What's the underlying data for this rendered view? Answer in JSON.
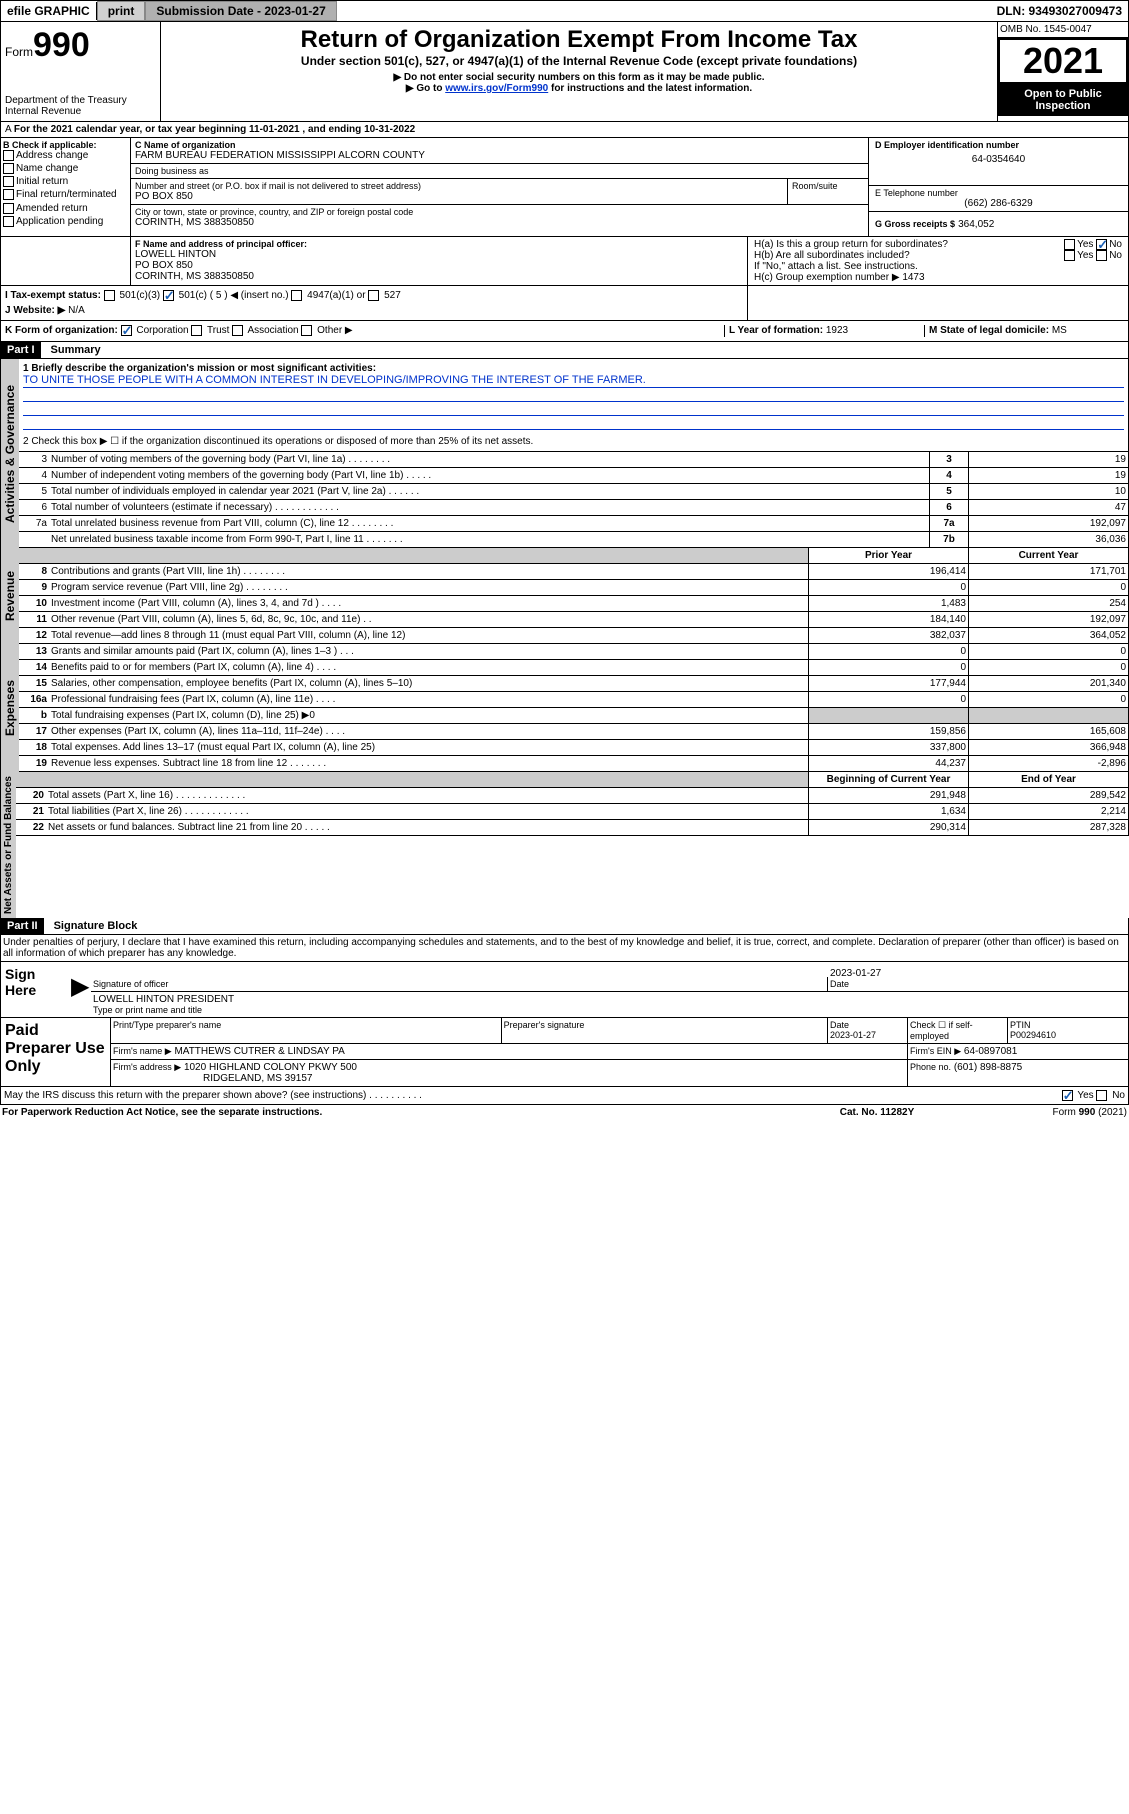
{
  "topbar": {
    "efile": "efile GRAPHIC",
    "print": "print",
    "submission_label": "Submission Date - 2023-01-27",
    "dln": "DLN: 93493027009473"
  },
  "header": {
    "form_prefix": "Form",
    "form_number": "990",
    "title": "Return of Organization Exempt From Income Tax",
    "subtitle": "Under section 501(c), 527, or 4947(a)(1) of the Internal Revenue Code (except private foundations)",
    "note1": "Do not enter social security numbers on this form as it may be made public.",
    "note2_pre": "Go to ",
    "note2_link": "www.irs.gov/Form990",
    "note2_post": " for instructions and the latest information.",
    "dept": "Department of the Treasury",
    "irs": "Internal Revenue",
    "omb": "OMB No. 1545-0047",
    "year": "2021",
    "open": "Open to Public Inspection"
  },
  "lineA": {
    "text_pre": "For the 2021 calendar year, or tax year beginning ",
    "begin": "11-01-2021",
    "mid": " , and ending ",
    "end": "10-31-2022"
  },
  "boxB": {
    "label": "B Check if applicable:",
    "items": [
      "Address change",
      "Name change",
      "Initial return",
      "Final return/terminated",
      "Amended return",
      "Application pending"
    ]
  },
  "boxC": {
    "label": "C Name of organization",
    "name": "FARM BUREAU FEDERATION MISSISSIPPI ALCORN COUNTY",
    "dba_label": "Doing business as",
    "dba": "",
    "street_label": "Number and street (or P.O. box if mail is not delivered to street address)",
    "room_label": "Room/suite",
    "street": "PO BOX 850",
    "city_label": "City or town, state or province, country, and ZIP or foreign postal code",
    "city": "CORINTH, MS  388350850"
  },
  "boxD": {
    "label": "D Employer identification number",
    "value": "64-0354640"
  },
  "boxE": {
    "label": "E Telephone number",
    "value": "(662) 286-6329"
  },
  "boxG": {
    "label": "G Gross receipts $",
    "value": "364,052"
  },
  "boxF": {
    "label": "F Name and address of principal officer:",
    "name": "LOWELL HINTON",
    "street": "PO BOX 850",
    "city": "CORINTH, MS  388350850"
  },
  "boxH": {
    "ha_label": "H(a)  Is this a group return for subordinates?",
    "ha_yes": "Yes",
    "ha_no": "No",
    "hb_label": "H(b)  Are all subordinates included?",
    "hb_note": "If \"No,\" attach a list. See instructions.",
    "hc_label": "H(c)  Group exemption number ▶",
    "hc_value": "1473"
  },
  "boxI": {
    "label": "I     Tax-exempt status:",
    "opt1": "501(c)(3)",
    "opt2": "501(c) ( 5 ) ◀ (insert no.)",
    "opt3": "4947(a)(1) or",
    "opt4": "527"
  },
  "boxJ": {
    "label": "J    Website: ▶",
    "value": "N/A"
  },
  "boxK": {
    "label": "K Form of organization:",
    "opts": [
      "Corporation",
      "Trust",
      "Association",
      "Other ▶"
    ]
  },
  "boxL": {
    "label": "L Year of formation:",
    "value": "1923"
  },
  "boxM": {
    "label": "M State of legal domicile:",
    "value": "MS"
  },
  "part1": {
    "title": "Part I",
    "heading": "Summary",
    "q1_label": "1   Briefly describe the organization's mission or most significant activities:",
    "q1_text": "TO UNITE THOSE PEOPLE WITH A COMMON INTEREST IN DEVELOPING/IMPROVING THE INTEREST OF THE FARMER.",
    "q2": "2   Check this box ▶ ☐  if the organization discontinued its operations or disposed of more than 25% of its net assets.",
    "sections": {
      "governance": "Activities & Governance",
      "revenue": "Revenue",
      "expenses": "Expenses",
      "netassets": "Net Assets or Fund Balances"
    },
    "gov_rows": [
      {
        "n": "3",
        "label": "Number of voting members of the governing body (Part VI, line 1a)  .   .   .   .   .   .   .   .",
        "box": "3",
        "val": "19"
      },
      {
        "n": "4",
        "label": "Number of independent voting members of the governing body (Part VI, line 1b)  .   .   .   .   .",
        "box": "4",
        "val": "19"
      },
      {
        "n": "5",
        "label": "Total number of individuals employed in calendar year 2021 (Part V, line 2a)  .   .   .   .   .   .",
        "box": "5",
        "val": "10"
      },
      {
        "n": "6",
        "label": "Total number of volunteers (estimate if necessary)  .   .   .   .   .   .   .   .   .   .   .   .",
        "box": "6",
        "val": "47"
      },
      {
        "n": "7a",
        "label": "Total unrelated business revenue from Part VIII, column (C), line 12  .   .   .   .   .   .   .   .",
        "box": "7a",
        "val": "192,097"
      },
      {
        "n": "",
        "label": "Net unrelated business taxable income from Form 990-T, Part I, line 11  .   .   .   .   .   .   .",
        "box": "7b",
        "val": "36,036"
      }
    ],
    "year_headers": {
      "prior": "Prior Year",
      "current": "Current Year",
      "boy": "Beginning of Current Year",
      "eoy": "End of Year"
    },
    "rev_rows": [
      {
        "n": "8",
        "label": "Contributions and grants (Part VIII, line 1h)   .   .   .   .   .   .   .   .",
        "py": "196,414",
        "cy": "171,701"
      },
      {
        "n": "9",
        "label": "Program service revenue (Part VIII, line 2g)   .   .   .   .   .   .   .   .",
        "py": "0",
        "cy": "0"
      },
      {
        "n": "10",
        "label": "Investment income (Part VIII, column (A), lines 3, 4, and 7d )   .   .   .   .",
        "py": "1,483",
        "cy": "254"
      },
      {
        "n": "11",
        "label": "Other revenue (Part VIII, column (A), lines 5, 6d, 8c, 9c, 10c, and 11e)   .   .",
        "py": "184,140",
        "cy": "192,097"
      },
      {
        "n": "12",
        "label": "Total revenue—add lines 8 through 11 (must equal Part VIII, column (A), line 12)",
        "py": "382,037",
        "cy": "364,052"
      }
    ],
    "exp_rows": [
      {
        "n": "13",
        "label": "Grants and similar amounts paid (Part IX, column (A), lines 1–3 )   .   .   .",
        "py": "0",
        "cy": "0"
      },
      {
        "n": "14",
        "label": "Benefits paid to or for members (Part IX, column (A), line 4)   .   .   .   .",
        "py": "0",
        "cy": "0"
      },
      {
        "n": "15",
        "label": "Salaries, other compensation, employee benefits (Part IX, column (A), lines 5–10)",
        "py": "177,944",
        "cy": "201,340"
      },
      {
        "n": "16a",
        "label": "Professional fundraising fees (Part IX, column (A), line 11e)   .   .   .   .",
        "py": "0",
        "cy": "0"
      },
      {
        "n": "b",
        "label": "Total fundraising expenses (Part IX, column (D), line 25) ▶0",
        "py": "",
        "cy": ""
      },
      {
        "n": "17",
        "label": "Other expenses (Part IX, column (A), lines 11a–11d, 11f–24e)  .   .   .   .",
        "py": "159,856",
        "cy": "165,608"
      },
      {
        "n": "18",
        "label": "Total expenses. Add lines 13–17 (must equal Part IX, column (A), line 25)",
        "py": "337,800",
        "cy": "366,948"
      },
      {
        "n": "19",
        "label": "Revenue less expenses. Subtract line 18 from line 12  .   .   .   .   .   .   .",
        "py": "44,237",
        "cy": "-2,896"
      }
    ],
    "na_rows": [
      {
        "n": "20",
        "label": "Total assets (Part X, line 16)  .   .   .   .   .   .   .   .   .   .   .   .   .",
        "py": "291,948",
        "cy": "289,542"
      },
      {
        "n": "21",
        "label": "Total liabilities (Part X, line 26)  .   .   .   .   .   .   .   .   .   .   .   .",
        "py": "1,634",
        "cy": "2,214"
      },
      {
        "n": "22",
        "label": "Net assets or fund balances. Subtract line 21 from line 20  .   .   .   .   .",
        "py": "290,314",
        "cy": "287,328"
      }
    ]
  },
  "part2": {
    "title": "Part II",
    "heading": "Signature Block",
    "declaration": "Under penalties of perjury, I declare that I have examined this return, including accompanying schedules and statements, and to the best of my knowledge and belief, it is true, correct, and complete. Declaration of preparer (other than officer) is based on all information of which preparer has any knowledge.",
    "sign_here": "Sign Here",
    "sig_officer": "Signature of officer",
    "sig_date_label": "Date",
    "sig_date": "2023-01-27",
    "officer_name": "LOWELL HINTON  PRESIDENT",
    "officer_sub": "Type or print name and title",
    "paid": "Paid Preparer Use Only",
    "prep_headers": [
      "Print/Type preparer's name",
      "Preparer's signature",
      "Date",
      "Check ☐ if self-employed",
      "PTIN"
    ],
    "prep_date": "2023-01-27",
    "ptin": "P00294610",
    "firm_name_label": "Firm's name      ▶",
    "firm_name": "MATTHEWS CUTRER & LINDSAY PA",
    "firm_ein_label": "Firm's EIN ▶",
    "firm_ein": "64-0897081",
    "firm_addr_label": "Firm's address ▶",
    "firm_addr1": "1020 HIGHLAND COLONY PKWY 500",
    "firm_addr2": "RIDGELAND, MS  39157",
    "phone_label": "Phone no.",
    "phone": "(601) 898-8875",
    "discuss": "May the IRS discuss this return with the preparer shown above? (see instructions)   .   .   .   .   .   .   .   .   .   .",
    "yes": "Yes",
    "no": "No"
  },
  "footer": {
    "pra": "For Paperwork Reduction Act Notice, see the separate instructions.",
    "cat": "Cat. No. 11282Y",
    "form": "Form 990 (2021)"
  }
}
